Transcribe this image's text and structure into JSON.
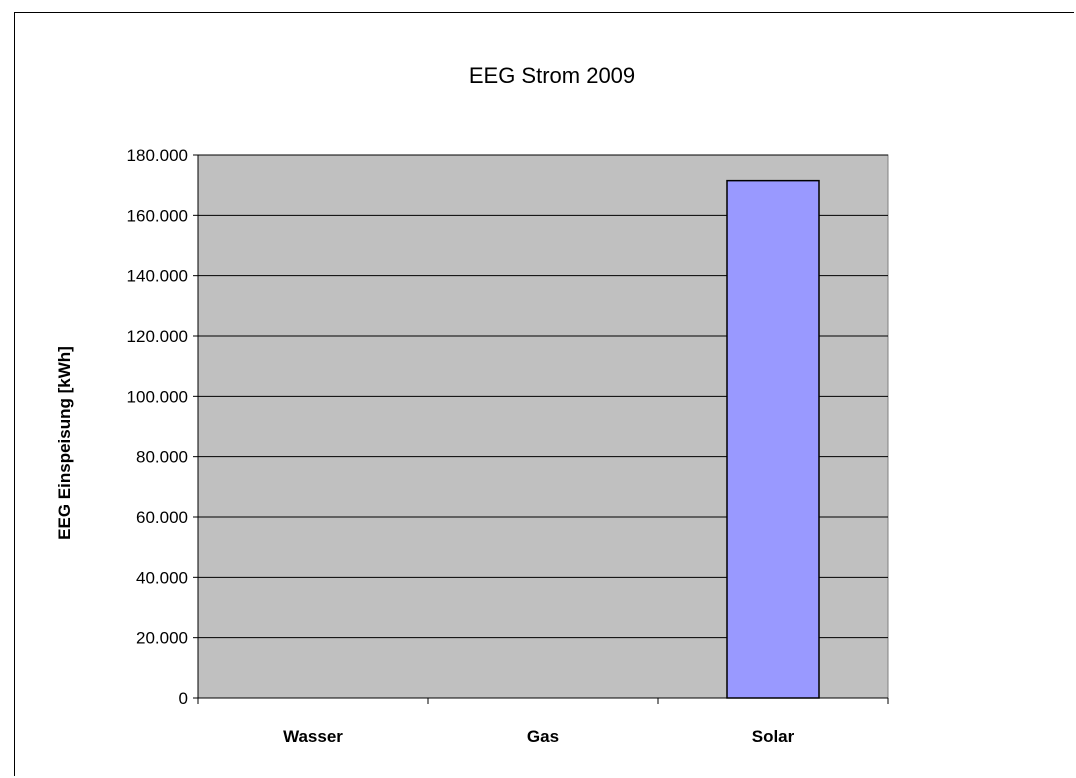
{
  "chart_data": {
    "type": "bar",
    "title": "EEG Strom 2009",
    "xlabel": "",
    "ylabel": "EEG Einspeisung [kWh]",
    "categories": [
      "Wasser",
      "Gas",
      "Solar"
    ],
    "values": [
      0,
      0,
      171500
    ],
    "ylim": [
      0,
      180000
    ],
    "yticks": [
      0,
      20000,
      40000,
      60000,
      80000,
      100000,
      120000,
      140000,
      160000,
      180000
    ],
    "ytick_labels": [
      "0",
      "20.000",
      "40.000",
      "60.000",
      "80.000",
      "100.000",
      "120.000",
      "140.000",
      "160.000",
      "180.000"
    ],
    "grid": true,
    "legend": "none",
    "colors": {
      "plot_background": "#c0c0c0",
      "bar_fill": "#9999ff",
      "bar_stroke": "#000000",
      "gridline": "#000000"
    }
  }
}
